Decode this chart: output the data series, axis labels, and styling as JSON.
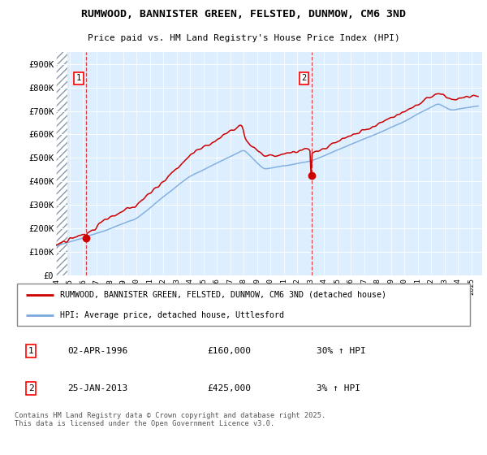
{
  "title": "RUMWOOD, BANNISTER GREEN, FELSTED, DUNMOW, CM6 3ND",
  "subtitle": "Price paid vs. HM Land Registry's House Price Index (HPI)",
  "ylim": [
    0,
    950000
  ],
  "yticks": [
    0,
    100000,
    200000,
    300000,
    400000,
    500000,
    600000,
    700000,
    800000,
    900000
  ],
  "ytick_labels": [
    "£0",
    "£100K",
    "£200K",
    "£300K",
    "£400K",
    "£500K",
    "£600K",
    "£700K",
    "£800K",
    "£900K"
  ],
  "legend_line1": "RUMWOOD, BANNISTER GREEN, FELSTED, DUNMOW, CM6 3ND (detached house)",
  "legend_line2": "HPI: Average price, detached house, Uttlesford",
  "footer": "Contains HM Land Registry data © Crown copyright and database right 2025.\nThis data is licensed under the Open Government Licence v3.0.",
  "annotation1_date": "02-APR-1996",
  "annotation1_price": "£160,000",
  "annotation1_hpi": "30% ↑ HPI",
  "annotation2_date": "25-JAN-2013",
  "annotation2_price": "£425,000",
  "annotation2_hpi": "3% ↑ HPI",
  "red_color": "#cc0000",
  "blue_color": "#7aaadd",
  "background_color": "#ddeeff",
  "marker1_x": 1996.25,
  "marker1_y": 160000,
  "marker2_x": 2013.07,
  "marker2_y": 425000,
  "xmin": 1994,
  "xmax": 2025.8,
  "xticks": [
    1994,
    1995,
    1996,
    1997,
    1998,
    1999,
    2000,
    2001,
    2002,
    2003,
    2004,
    2005,
    2006,
    2007,
    2008,
    2009,
    2010,
    2011,
    2012,
    2013,
    2014,
    2015,
    2016,
    2017,
    2018,
    2019,
    2020,
    2021,
    2022,
    2023,
    2024,
    2025
  ]
}
